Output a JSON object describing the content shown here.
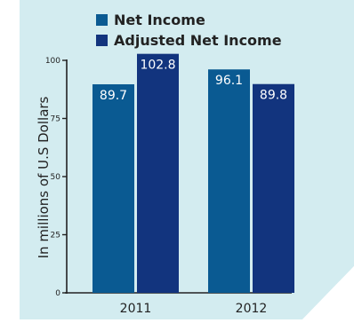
{
  "colors": {
    "panel_bg": "#d3ecf0",
    "net_income": "#0a5a92",
    "adjusted_net_income": "#12347e",
    "axis": "#222222",
    "bar_label_text": "#ffffff"
  },
  "chart_data": {
    "type": "bar",
    "categories": [
      "2011",
      "2012"
    ],
    "series": [
      {
        "name": "Net Income",
        "values": [
          89.7,
          96.1
        ],
        "labels": [
          "89.7",
          "96.1"
        ]
      },
      {
        "name": "Adjusted Net Income",
        "values": [
          102.8,
          89.8
        ],
        "labels": [
          "102.8",
          "89.8"
        ]
      }
    ],
    "ylabel": "In millions of U.S Dollars",
    "ylim": [
      0,
      100
    ],
    "yticks": [
      0,
      25,
      50,
      75,
      100
    ],
    "legend": "top",
    "grid": false
  }
}
